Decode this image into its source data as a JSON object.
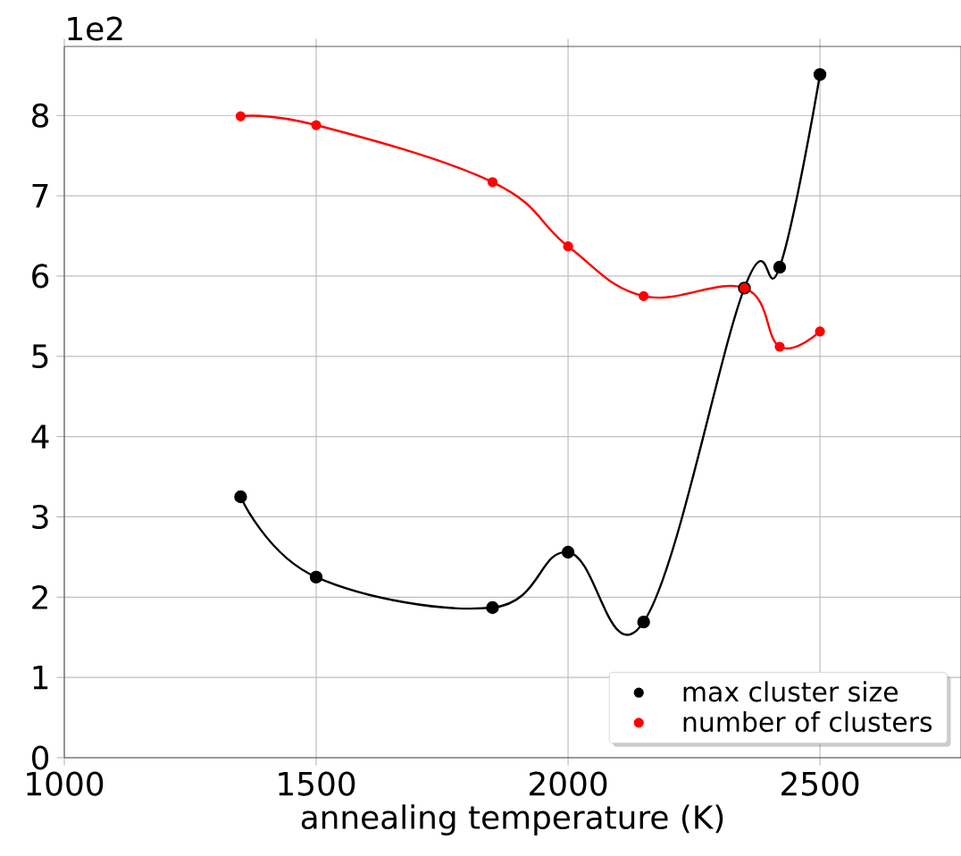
{
  "chart_data": {
    "type": "line",
    "xlabel": "annealing temperature (K)",
    "annotations": [
      "1e2"
    ],
    "x": [
      1350,
      1500,
      1850,
      2000,
      2150,
      2350,
      2420,
      2500
    ],
    "series": [
      {
        "name": "max cluster size",
        "color": "#000000",
        "values": [
          3.25,
          2.25,
          1.87,
          2.56,
          1.69,
          5.85,
          6.11,
          8.51
        ]
      },
      {
        "name": "number of clusters",
        "color": "#ff0000",
        "values": [
          7.99,
          7.88,
          7.17,
          6.37,
          5.75,
          5.85,
          5.12,
          5.31
        ]
      }
    ],
    "xlim": [
      1000,
      2780
    ],
    "ylim": [
      0,
      8.86
    ],
    "xticks": [
      1000,
      1500,
      2000,
      2500
    ],
    "yticks": [
      0,
      1,
      2,
      3,
      4,
      5,
      6,
      7,
      8
    ],
    "grid": true,
    "legend": "bottom right",
    "marker": "circle",
    "line_style": "solid"
  }
}
